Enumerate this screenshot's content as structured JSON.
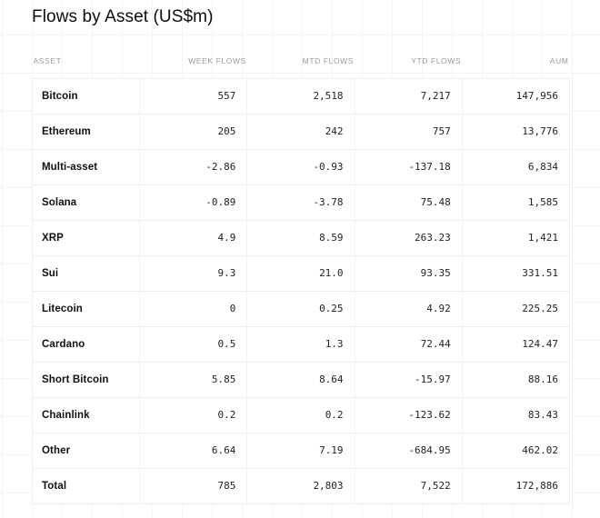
{
  "title": "Flows by Asset (US$m)",
  "chart_data": {
    "type": "table",
    "title": "Flows by Asset (US$m)",
    "columns": [
      "ASSET",
      "WEEK FLOWS",
      "MTD FLOWS",
      "YTD FLOWS",
      "AUM"
    ],
    "rows": [
      {
        "asset": "Bitcoin",
        "week": "557",
        "mtd": "2,518",
        "ytd": "7,217",
        "aum": "147,956"
      },
      {
        "asset": "Ethereum",
        "week": "205",
        "mtd": "242",
        "ytd": "757",
        "aum": "13,776"
      },
      {
        "asset": "Multi-asset",
        "week": "-2.86",
        "mtd": "-0.93",
        "ytd": "-137.18",
        "aum": "6,834"
      },
      {
        "asset": "Solana",
        "week": "-0.89",
        "mtd": "-3.78",
        "ytd": "75.48",
        "aum": "1,585"
      },
      {
        "asset": "XRP",
        "week": "4.9",
        "mtd": "8.59",
        "ytd": "263.23",
        "aum": "1,421"
      },
      {
        "asset": "Sui",
        "week": "9.3",
        "mtd": "21.0",
        "ytd": "93.35",
        "aum": "331.51"
      },
      {
        "asset": "Litecoin",
        "week": "0",
        "mtd": "0.25",
        "ytd": "4.92",
        "aum": "225.25"
      },
      {
        "asset": "Cardano",
        "week": "0.5",
        "mtd": "1.3",
        "ytd": "72.44",
        "aum": "124.47"
      },
      {
        "asset": "Short Bitcoin",
        "week": "5.85",
        "mtd": "8.64",
        "ytd": "-15.97",
        "aum": "88.16"
      },
      {
        "asset": "Chainlink",
        "week": "0.2",
        "mtd": "0.2",
        "ytd": "-123.62",
        "aum": "83.43"
      },
      {
        "asset": "Other",
        "week": "6.64",
        "mtd": "7.19",
        "ytd": "-684.95",
        "aum": "462.02"
      },
      {
        "asset": "Total",
        "week": "785",
        "mtd": "2,803",
        "ytd": "7,522",
        "aum": "172,886"
      }
    ]
  },
  "colors": {
    "header_text": "#9b9b9b",
    "asset_text": "#101010",
    "number_text": "#1f1f1f",
    "row_border": "#ededed",
    "column_border": "#f1f1f1",
    "background_grid_line": "#f4f4f4",
    "row_background": "#ffffff",
    "title_text": "#0c0c0c"
  }
}
